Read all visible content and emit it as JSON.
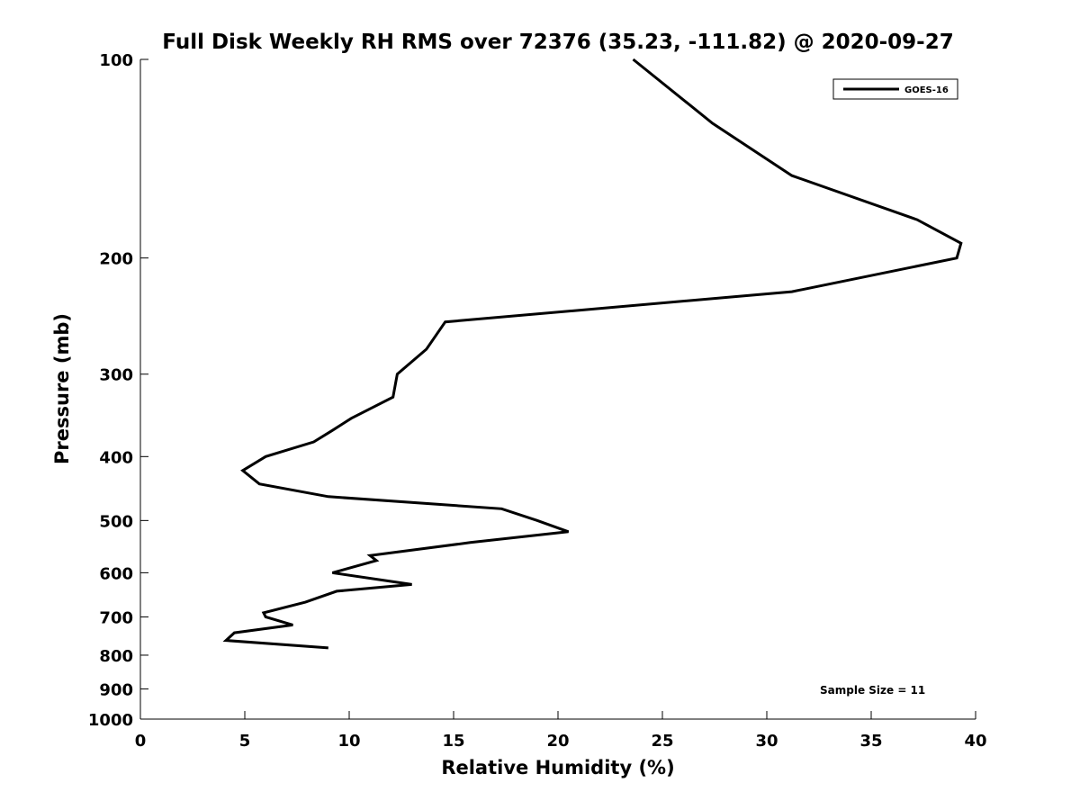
{
  "chart_data": {
    "type": "line",
    "title": "Full Disk Weekly RH RMS over 72376 (35.23, -111.82) @ 2020-09-27",
    "xlabel": "Relative Humidity (%)",
    "ylabel": "Pressure (mb)",
    "xlim": [
      0,
      40
    ],
    "ylim": [
      1000,
      100
    ],
    "yscale": "log",
    "xticks": [
      0,
      5,
      10,
      15,
      20,
      25,
      30,
      35,
      40
    ],
    "yticks": [
      100,
      200,
      300,
      400,
      500,
      600,
      700,
      800,
      900,
      1000
    ],
    "grid": false,
    "legend_position": "top-right",
    "annotation": "Sample Size = 11",
    "series": [
      {
        "name": "GOES-16",
        "color": "#000000",
        "points": [
          [
            23.6,
            100
          ],
          [
            27.4,
            125
          ],
          [
            31.2,
            150
          ],
          [
            37.2,
            175
          ],
          [
            39.3,
            190
          ],
          [
            39.1,
            200
          ],
          [
            31.2,
            225
          ],
          [
            14.6,
            250
          ],
          [
            13.7,
            275
          ],
          [
            12.3,
            300
          ],
          [
            12.1,
            325
          ],
          [
            10.1,
            350
          ],
          [
            9.2,
            365
          ],
          [
            8.3,
            380
          ],
          [
            6.0,
            400
          ],
          [
            4.9,
            420
          ],
          [
            5.7,
            440
          ],
          [
            9.0,
            460
          ],
          [
            17.3,
            480
          ],
          [
            19.0,
            500
          ],
          [
            20.5,
            520
          ],
          [
            15.8,
            540
          ],
          [
            11.0,
            565
          ],
          [
            11.3,
            575
          ],
          [
            9.2,
            600
          ],
          [
            13.0,
            625
          ],
          [
            9.4,
            640
          ],
          [
            7.9,
            665
          ],
          [
            5.9,
            690
          ],
          [
            6.0,
            700
          ],
          [
            7.3,
            720
          ],
          [
            4.5,
            740
          ],
          [
            4.1,
            760
          ],
          [
            9.0,
            780
          ]
        ]
      }
    ]
  }
}
